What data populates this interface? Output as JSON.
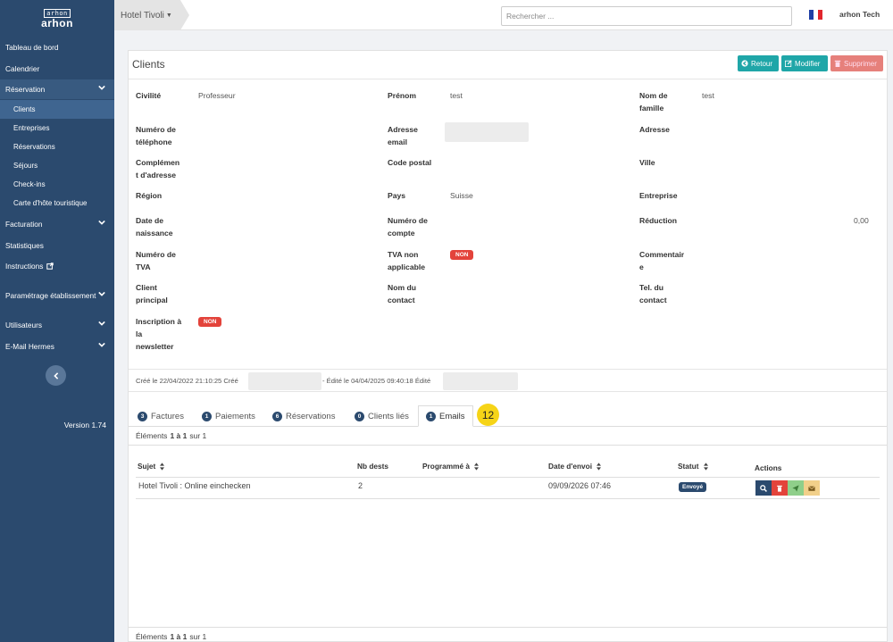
{
  "sidebar": {
    "logo_top": "arhon",
    "logo_main": "arhon",
    "items": [
      {
        "label": "Tableau de bord"
      },
      {
        "label": "Calendrier"
      },
      {
        "label": "Réservation"
      },
      {
        "label": "Facturation"
      },
      {
        "label": "Statistiques"
      },
      {
        "label": "Instructions"
      },
      {
        "label": "Paramétrage établissement"
      },
      {
        "label": "Utilisateurs"
      },
      {
        "label": "E-Mail Hermes"
      }
    ],
    "sub_items": [
      {
        "label": "Clients"
      },
      {
        "label": "Entreprises"
      },
      {
        "label": "Réservations"
      },
      {
        "label": "Séjours"
      },
      {
        "label": "Check-ins"
      },
      {
        "label": "Carte d'hôte touristique"
      }
    ],
    "version": "Version 1.74"
  },
  "topbar": {
    "hotel": "Hotel Tivoli",
    "search_placeholder": "Rechercher ...",
    "user": "arhon Tech"
  },
  "page": {
    "title": "Clients",
    "buttons": {
      "back": "Retour",
      "edit": "Modifier",
      "delete": "Supprimer"
    }
  },
  "fields": {
    "civilite": {
      "label": "Civilité",
      "value": "Professeur"
    },
    "prenom": {
      "label": "Prénom",
      "value": "test"
    },
    "nom": {
      "label_1": "Nom de",
      "label_2": "famille",
      "value": "test"
    },
    "telephone": {
      "label_1": "Numéro de",
      "label_2": "téléphone",
      "value": ""
    },
    "email": {
      "label_1": "Adresse",
      "label_2": "email",
      "value": ""
    },
    "adresse": {
      "label": "Adresse",
      "value": ""
    },
    "complement": {
      "label_1": "Complémen",
      "label_2": "t d'adresse",
      "value": ""
    },
    "code_postal": {
      "label": "Code postal",
      "value": ""
    },
    "ville": {
      "label": "Ville",
      "value": ""
    },
    "region": {
      "label": "Région",
      "value": ""
    },
    "pays": {
      "label": "Pays",
      "value": "Suisse"
    },
    "entreprise": {
      "label": "Entreprise",
      "value": ""
    },
    "naissance": {
      "label_1": "Date de",
      "label_2": "naissance",
      "value": ""
    },
    "compte": {
      "label_1": "Numéro de",
      "label_2": "compte",
      "value": ""
    },
    "reduction": {
      "label": "Réduction",
      "value": "0,00"
    },
    "tva": {
      "label_1": "Numéro de",
      "label_2": "TVA",
      "value": ""
    },
    "tva_non_applicable": {
      "label_1": "TVA non",
      "label_2": "applicable",
      "value": "NON"
    },
    "commentaire": {
      "label_1": "Commentair",
      "label_2": "e",
      "value": ""
    },
    "client_principal": {
      "label_1": "Client",
      "label_2": "principal",
      "value": ""
    },
    "nom_contact": {
      "label_1": "Nom du",
      "label_2": "contact",
      "value": ""
    },
    "tel_contact": {
      "label_1": "Tel. du",
      "label_2": "contact",
      "value": ""
    },
    "newsletter": {
      "label_1": "Inscription à",
      "label_2": "la",
      "label_3": "newsletter",
      "value": "NON"
    }
  },
  "audit": {
    "created": "Créé le 22/04/2022 21:10:25 Créé",
    "edited": "- Édité le 04/04/2025 09:40:18 Édité"
  },
  "tabs": [
    {
      "count": "3",
      "label": "Factures"
    },
    {
      "count": "1",
      "label": "Paiements"
    },
    {
      "count": "6",
      "label": "Réservations"
    },
    {
      "count": "0",
      "label": "Clients liés"
    },
    {
      "count": "1",
      "label": "Emails"
    }
  ],
  "step_badge": "12",
  "pager": {
    "prefix": "Éléments",
    "range": "1 à 1",
    "suffix": "sur 1"
  },
  "table": {
    "headers": {
      "subject": "Sujet",
      "recipients": "Nb dests",
      "scheduled": "Programmé à",
      "sent": "Date d'envoi",
      "status": "Statut",
      "actions": "Actions"
    },
    "rows": [
      {
        "subject": "Hotel Tivoli : Online einchecken",
        "recipients": "2",
        "scheduled": "",
        "sent": "09/09/2026 07:46",
        "status": "Envoyé"
      }
    ]
  },
  "colors": {
    "sidebar": "#2b4a6e",
    "accent": "#1fa6a8",
    "danger": "#e3433b",
    "badge": "#f6d417"
  },
  "icons": [
    "chevron-down-icon",
    "external-link-icon",
    "chevron-left-icon",
    "arrow-left-icon",
    "edit-icon",
    "trash-icon",
    "sort-icon",
    "search-icon",
    "send-icon",
    "envelope-icon"
  ]
}
